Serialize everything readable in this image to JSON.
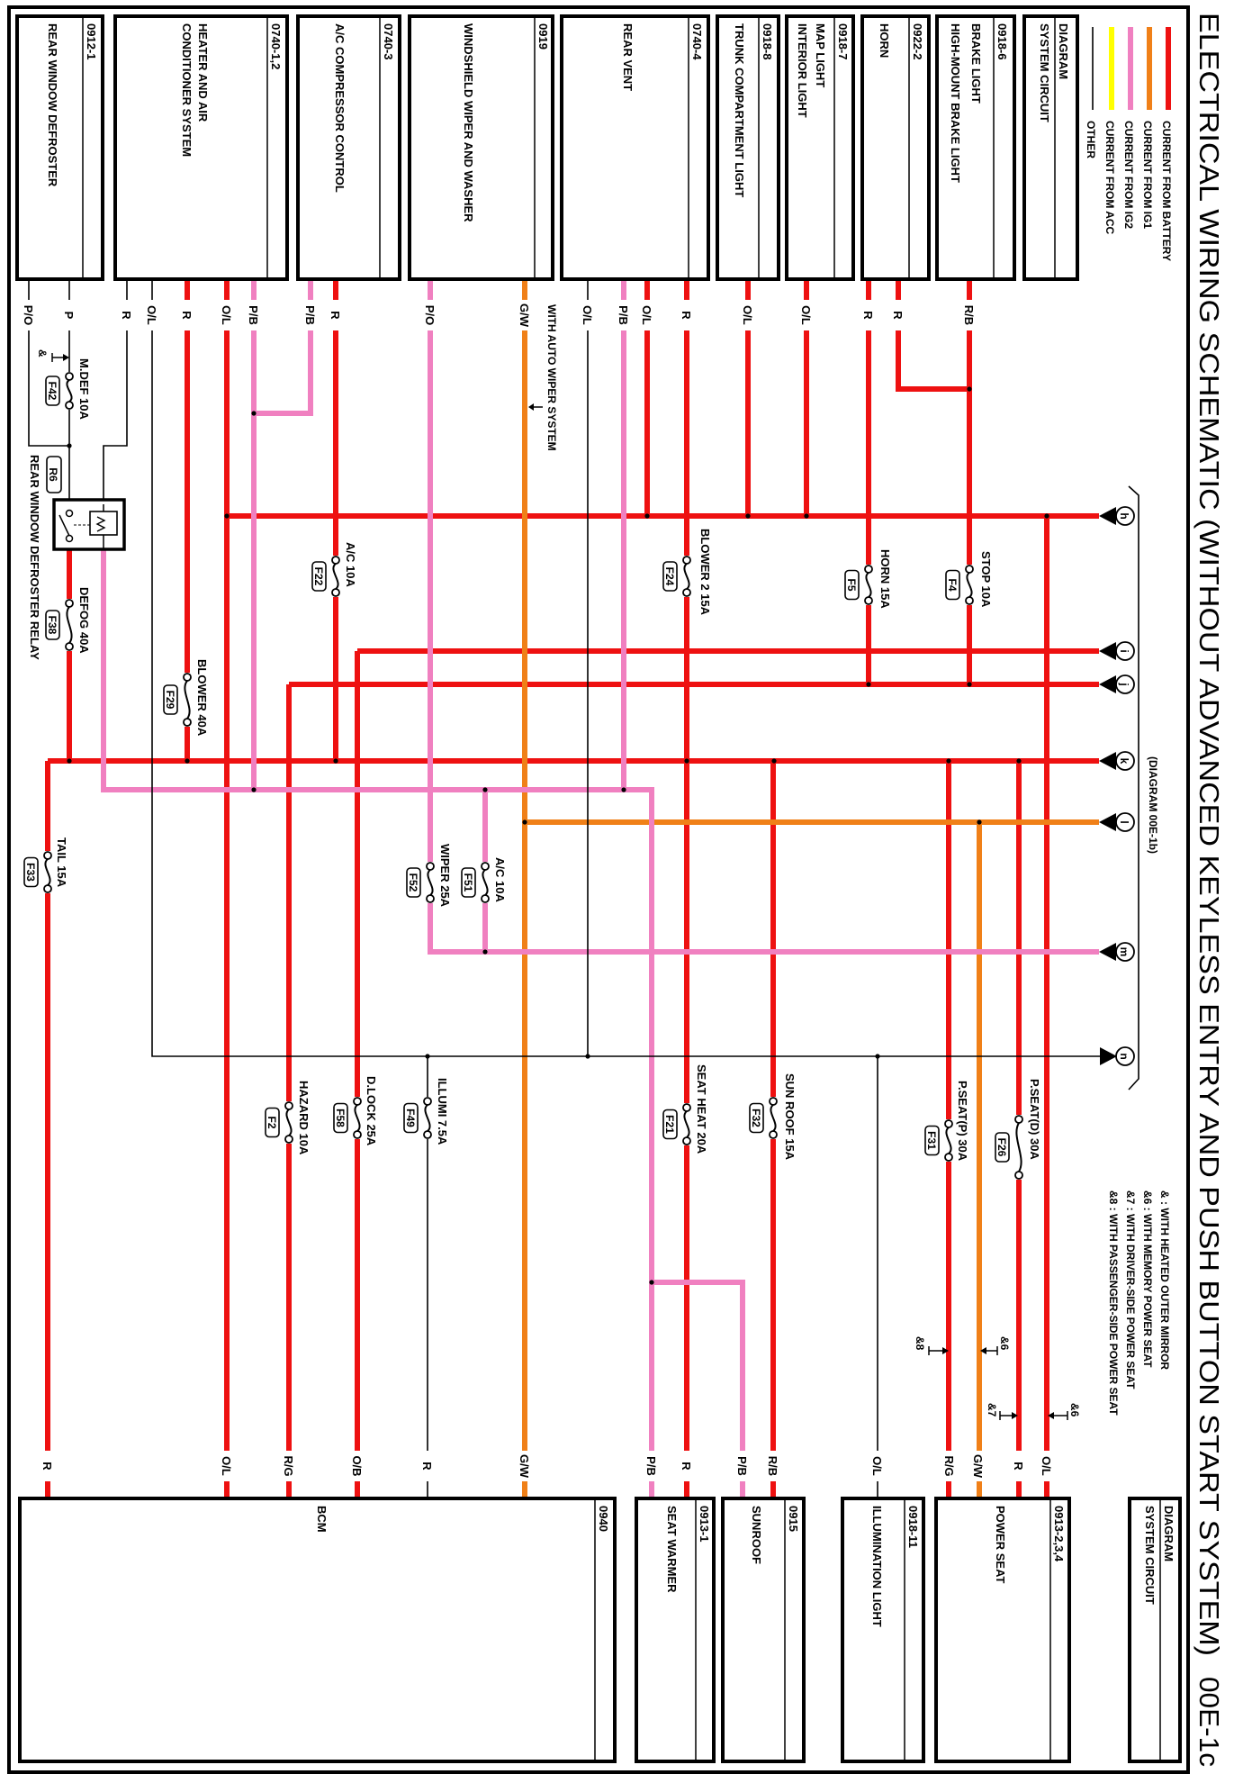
{
  "title": "ELECTRICAL WIRING SCHEMATIC (WITHOUT ADVANCED KEYLESS ENTRY AND PUSH BUTTON START SYSTEM)",
  "page_code": "00E-1c",
  "legend": [
    {
      "label": "CURRENT FROM BATTERY",
      "color": "#ee1111"
    },
    {
      "label": "CURRENT FROM IG1",
      "color": "#f08018"
    },
    {
      "label": "CURRENT FROM IG2",
      "color": "#f080c0"
    },
    {
      "label": "CURRENT FROM ACC",
      "color": "#ffff00"
    },
    {
      "label": "OTHER",
      "color": "#000000"
    }
  ],
  "diagram_box": {
    "line1": "DIAGRAM",
    "line2": "SYSTEM CIRCUIT"
  },
  "top_components": [
    {
      "code": "0912-1",
      "name": [
        "REAR WINDOW DEFROSTER"
      ],
      "wires": [
        "P/O",
        "P"
      ]
    },
    {
      "code": "0740-1,2",
      "name": [
        "HEATER AND AIR",
        "CONDITIONER SYSTEM"
      ],
      "wires": [
        "R",
        "O/L",
        "R",
        "O/L",
        "P/B"
      ]
    },
    {
      "code": "0740-3",
      "name": [
        "A/C COMPRESSOR CONTROL"
      ],
      "wires": [
        "P/B",
        "R"
      ]
    },
    {
      "code": "0919",
      "name": [
        "WINDSHIELD WIPER AND WASHER"
      ],
      "wires": [
        "P/O",
        "G/W"
      ]
    },
    {
      "code": "0740-4",
      "name": [
        "REAR VENT"
      ],
      "wires": [
        "O/L",
        "P/B",
        "O/L",
        "R"
      ]
    },
    {
      "code": "0918-8",
      "name": [
        "TRUNK COMPARTMENT LIGHT"
      ],
      "wires": [
        "O/L"
      ]
    },
    {
      "code": "0918-7",
      "name": [
        "MAP LIGHT",
        "INTERIOR LIGHT"
      ],
      "wires": [
        "O/L"
      ]
    },
    {
      "code": "0922-2",
      "name": [
        "HORN"
      ],
      "wires": [
        "R",
        "R"
      ]
    },
    {
      "code": "0918-6",
      "name": [
        "BRAKE LIGHT",
        "HIGH-MOUNT BRAKE LIGHT"
      ],
      "wires": [
        "R/B"
      ]
    }
  ],
  "bottom_components": [
    {
      "code": "0940",
      "name": [
        "BCM"
      ],
      "wires": [
        "R",
        "O/L",
        "R/G",
        "O/B",
        "R",
        "G/W"
      ]
    },
    {
      "code": "0913-1",
      "name": [
        "SEAT WARMER"
      ],
      "wires": [
        "P/B",
        "R"
      ]
    },
    {
      "code": "0915",
      "name": [
        "SUNROOF"
      ],
      "wires": [
        "P/B",
        "R/B"
      ]
    },
    {
      "code": "0918-11",
      "name": [
        "ILLUMINATION LIGHT"
      ],
      "wires": [
        "O/L"
      ]
    },
    {
      "code": "0913-2,3,4",
      "name": [
        "POWER SEAT"
      ],
      "wires": [
        "R/G",
        "G/W",
        "R",
        "O/L"
      ]
    }
  ],
  "fuses": [
    {
      "name": "M.DEF 10A",
      "id": "F42"
    },
    {
      "name": "DEFOG 40A",
      "id": "F38"
    },
    {
      "name": "BLOWER 40A",
      "id": "F29"
    },
    {
      "name": "A/C 10A",
      "id": "F22"
    },
    {
      "name": "BLOWER 2 15A",
      "id": "F24"
    },
    {
      "name": "HORN 15A",
      "id": "F5"
    },
    {
      "name": "STOP 10A",
      "id": "F4"
    },
    {
      "name": "TAIL 15A",
      "id": "F33"
    },
    {
      "name": "WIPER 25A",
      "id": "F52"
    },
    {
      "name": "A/C 10A",
      "id": "F51"
    },
    {
      "name": "HAZARD 10A",
      "id": "F2"
    },
    {
      "name": "D.LOCK 25A",
      "id": "F58"
    },
    {
      "name": "ILLUMI 7.5A",
      "id": "F49"
    },
    {
      "name": "SEAT HEAT 20A",
      "id": "F21"
    },
    {
      "name": "SUN ROOF 15A",
      "id": "F32"
    },
    {
      "name": "P.SEAT(P) 30A",
      "id": "F31"
    },
    {
      "name": "P.SEAT(D) 30A",
      "id": "F26"
    }
  ],
  "relay": {
    "id": "R6",
    "name": "REAR WINDOW DEFROSTER RELAY"
  },
  "connectors": [
    "h",
    "i",
    "j",
    "k",
    "l",
    "m",
    "n"
  ],
  "connector_ref": "(DIAGRAM 00E-1b)",
  "auto_wiper_note": "WITH AUTO WIPER SYSTEM",
  "option_marks": [
    "&",
    "&8",
    "&6",
    "&7",
    "&6"
  ],
  "notes": [
    "& : WITH HEATED OUTER MIRROR",
    "&6 : WITH MEMORY POWER SEAT",
    "&7 : WITH DRIVER-SIDE POWER SEAT",
    "&8 : WITH PASSENGER-SIDE POWER SEAT"
  ]
}
